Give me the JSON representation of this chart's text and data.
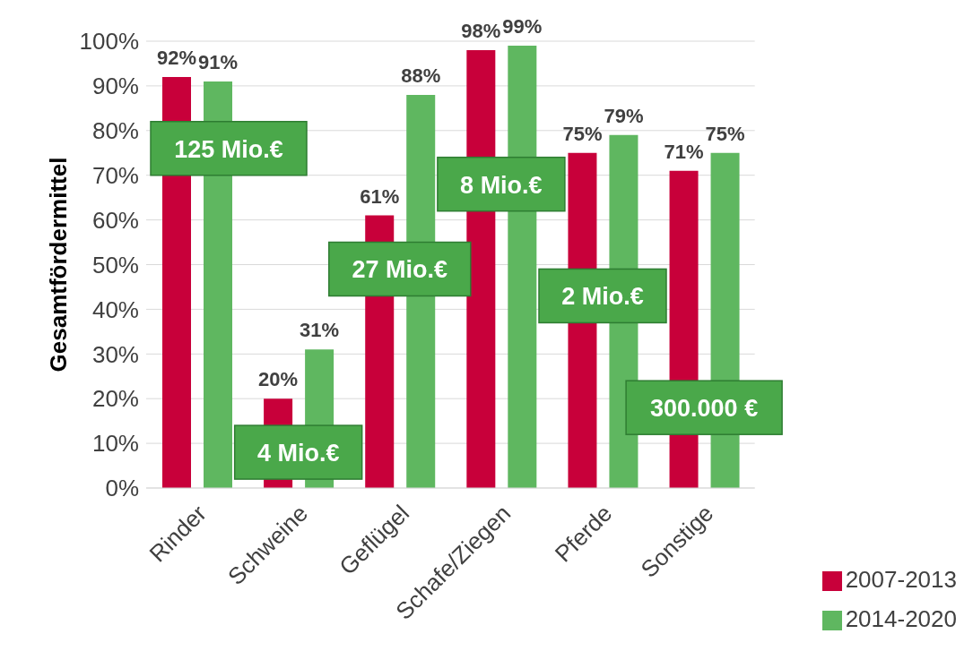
{
  "chart_data": {
    "type": "bar",
    "ylabel": "Gesamtfördermittel",
    "categories": [
      "Rinder",
      "Schweine",
      "Geflügel",
      "Schafe/Ziegen",
      "Pferde",
      "Sonstige"
    ],
    "series": [
      {
        "name": "2007-2013",
        "color": "#c8003a",
        "values": [
          92,
          20,
          61,
          98,
          75,
          71
        ],
        "value_labels": [
          "92%",
          "20%",
          "61%",
          "98%",
          "75%",
          "71%"
        ]
      },
      {
        "name": "2014-2020",
        "color": "#5fb760",
        "values": [
          91,
          31,
          88,
          99,
          79,
          75
        ],
        "value_labels": [
          "91%",
          "31%",
          "88%",
          "99%",
          "79%",
          "75%"
        ]
      }
    ],
    "ylim": [
      0,
      100
    ],
    "yticks": [
      {
        "value": 0,
        "label": "0%"
      },
      {
        "value": 10,
        "label": "10%"
      },
      {
        "value": 20,
        "label": "20%"
      },
      {
        "value": 30,
        "label": "30%"
      },
      {
        "value": 40,
        "label": "40%"
      },
      {
        "value": 50,
        "label": "50%"
      },
      {
        "value": 60,
        "label": "60%"
      },
      {
        "value": 70,
        "label": "70%"
      },
      {
        "value": 80,
        "label": "80%"
      },
      {
        "value": 90,
        "label": "90%"
      },
      {
        "value": 100,
        "label": "100%"
      }
    ],
    "grid": "y",
    "legend": "bottom right",
    "annotations": [
      {
        "text": "125 Mio.€",
        "x": "Rinder",
        "y": 76
      },
      {
        "text": "4 Mio.€",
        "x": "Schweine",
        "y": 8
      },
      {
        "text": "27 Mio.€",
        "x": "Geflügel",
        "y": 49
      },
      {
        "text": "8 Mio.€",
        "x": "Schafe/Ziegen",
        "y": 68
      },
      {
        "text": "2 Mio.€",
        "x": "Pferde",
        "y": 43
      },
      {
        "text": "300.000 €",
        "x": "Sonstige",
        "y": 18
      }
    ]
  }
}
